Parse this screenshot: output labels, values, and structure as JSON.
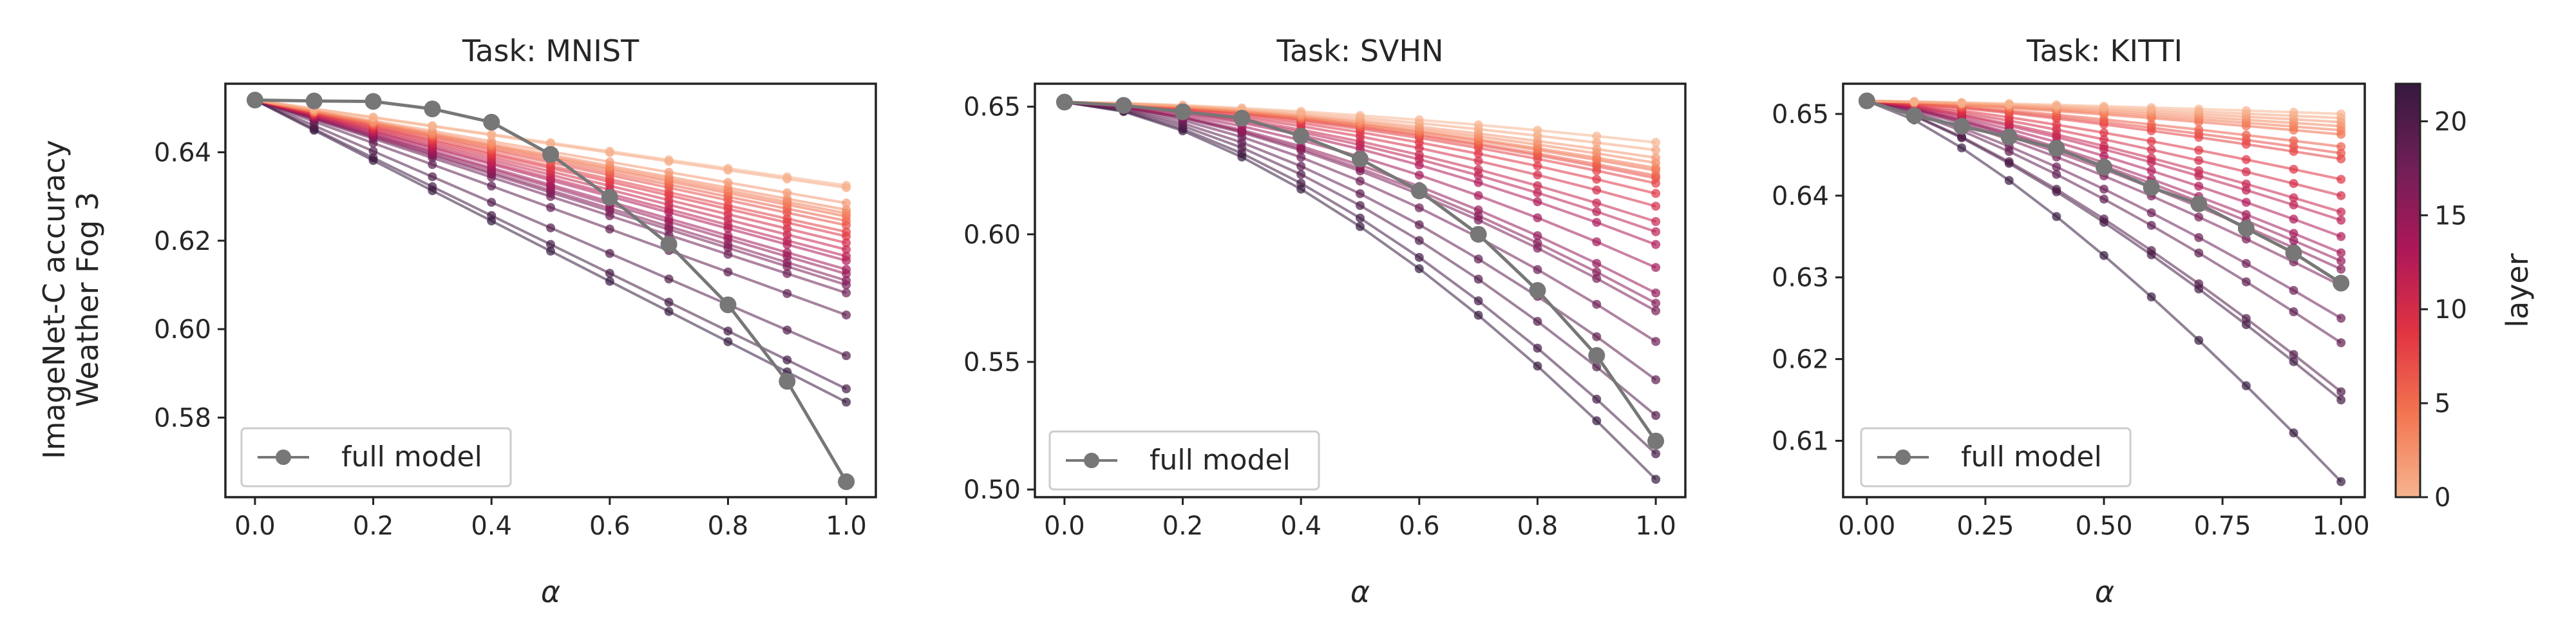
{
  "figure": {
    "ylabel_line1": "ImageNet-C accuracy",
    "ylabel_line2": "Weather Fog 3",
    "colorbar": {
      "label": "layer",
      "ticks": [
        0,
        5,
        10,
        15,
        20
      ],
      "vmin": 0,
      "vmax": 22,
      "colormap": [
        "#f6b48f",
        "#f37651",
        "#e13342",
        "#ad1759",
        "#701f57",
        "#35193e"
      ]
    },
    "full_model_color": "#777777"
  },
  "chart_data": [
    {
      "type": "line",
      "title": "Task: MNIST",
      "xlabel": "α",
      "ylabel": "ImageNet-C accuracy Weather Fog 3",
      "xlim": [
        -0.05,
        1.05
      ],
      "ylim": [
        0.562,
        0.6555
      ],
      "xticks": [
        0.0,
        0.2,
        0.4,
        0.6,
        0.8,
        1.0
      ],
      "xtick_labels": [
        "0.0",
        "0.2",
        "0.4",
        "0.6",
        "0.8",
        "1.0"
      ],
      "yticks": [
        0.58,
        0.6,
        0.62,
        0.64
      ],
      "ytick_labels": [
        "0.58",
        "0.60",
        "0.62",
        "0.64"
      ],
      "legend": {
        "label": "full model",
        "location": "lower left"
      },
      "x": [
        0,
        0.1,
        0.2,
        0.3,
        0.4,
        0.5,
        0.6,
        0.7,
        0.8,
        0.9,
        1.0
      ],
      "full_model": [
        0.6518,
        0.6516,
        0.6515,
        0.6498,
        0.6468,
        0.6395,
        0.6298,
        0.6192,
        0.6055,
        0.5882,
        0.5655
      ],
      "layer_final_values": [
        0.5835,
        0.5865,
        0.594,
        0.6032,
        0.6082,
        0.61,
        0.611,
        0.6125,
        0.6135,
        0.6155,
        0.6165,
        0.618,
        0.6195,
        0.621,
        0.622,
        0.6235,
        0.6245,
        0.6255,
        0.6262,
        0.627,
        0.6285,
        0.632,
        0.6325
      ]
    },
    {
      "type": "line",
      "title": "Task: SVHN",
      "xlabel": "α",
      "ylabel": "",
      "xlim": [
        -0.05,
        1.05
      ],
      "ylim": [
        0.497,
        0.659
      ],
      "xticks": [
        0.0,
        0.2,
        0.4,
        0.6,
        0.8,
        1.0
      ],
      "xtick_labels": [
        "0.0",
        "0.2",
        "0.4",
        "0.6",
        "0.8",
        "1.0"
      ],
      "yticks": [
        0.5,
        0.55,
        0.6,
        0.65
      ],
      "ytick_labels": [
        "0.50",
        "0.55",
        "0.60",
        "0.65"
      ],
      "legend": {
        "label": "full model",
        "location": "lower left"
      },
      "x": [
        0,
        0.1,
        0.2,
        0.3,
        0.4,
        0.5,
        0.6,
        0.7,
        0.8,
        0.9,
        1.0
      ],
      "full_model": [
        0.6518,
        0.6505,
        0.648,
        0.6455,
        0.6385,
        0.6295,
        0.617,
        0.6,
        0.578,
        0.5525,
        0.519
      ],
      "layer_final_values": [
        0.504,
        0.514,
        0.529,
        0.543,
        0.558,
        0.57,
        0.573,
        0.577,
        0.587,
        0.596,
        0.601,
        0.605,
        0.611,
        0.616,
        0.62,
        0.622,
        0.623,
        0.625,
        0.626,
        0.628,
        0.63,
        0.633,
        0.636
      ]
    },
    {
      "type": "line",
      "title": "Task: KITTI",
      "xlabel": "α",
      "ylabel": "",
      "xlim": [
        -0.05,
        1.05
      ],
      "ylim": [
        0.6031,
        0.6537
      ],
      "xticks": [
        0.0,
        0.25,
        0.5,
        0.75,
        1.0
      ],
      "xtick_labels": [
        "0.00",
        "0.25",
        "0.50",
        "0.75",
        "1.00"
      ],
      "yticks": [
        0.61,
        0.62,
        0.63,
        0.64,
        0.65
      ],
      "ytick_labels": [
        "0.61",
        "0.62",
        "0.63",
        "0.64",
        "0.65"
      ],
      "legend": {
        "label": "full model",
        "location": "lower left"
      },
      "x": [
        0,
        0.1,
        0.2,
        0.3,
        0.4,
        0.5,
        0.6,
        0.7,
        0.8,
        0.9,
        1.0
      ],
      "full_model": [
        0.6516,
        0.6498,
        0.6485,
        0.6472,
        0.6458,
        0.6435,
        0.641,
        0.639,
        0.636,
        0.633,
        0.6293
      ],
      "layer_final_values": [
        0.605,
        0.615,
        0.616,
        0.622,
        0.625,
        0.629,
        0.631,
        0.632,
        0.633,
        0.635,
        0.637,
        0.638,
        0.64,
        0.642,
        0.6445,
        0.6452,
        0.646,
        0.6475,
        0.648,
        0.6485,
        0.649,
        0.6495,
        0.65
      ]
    }
  ]
}
